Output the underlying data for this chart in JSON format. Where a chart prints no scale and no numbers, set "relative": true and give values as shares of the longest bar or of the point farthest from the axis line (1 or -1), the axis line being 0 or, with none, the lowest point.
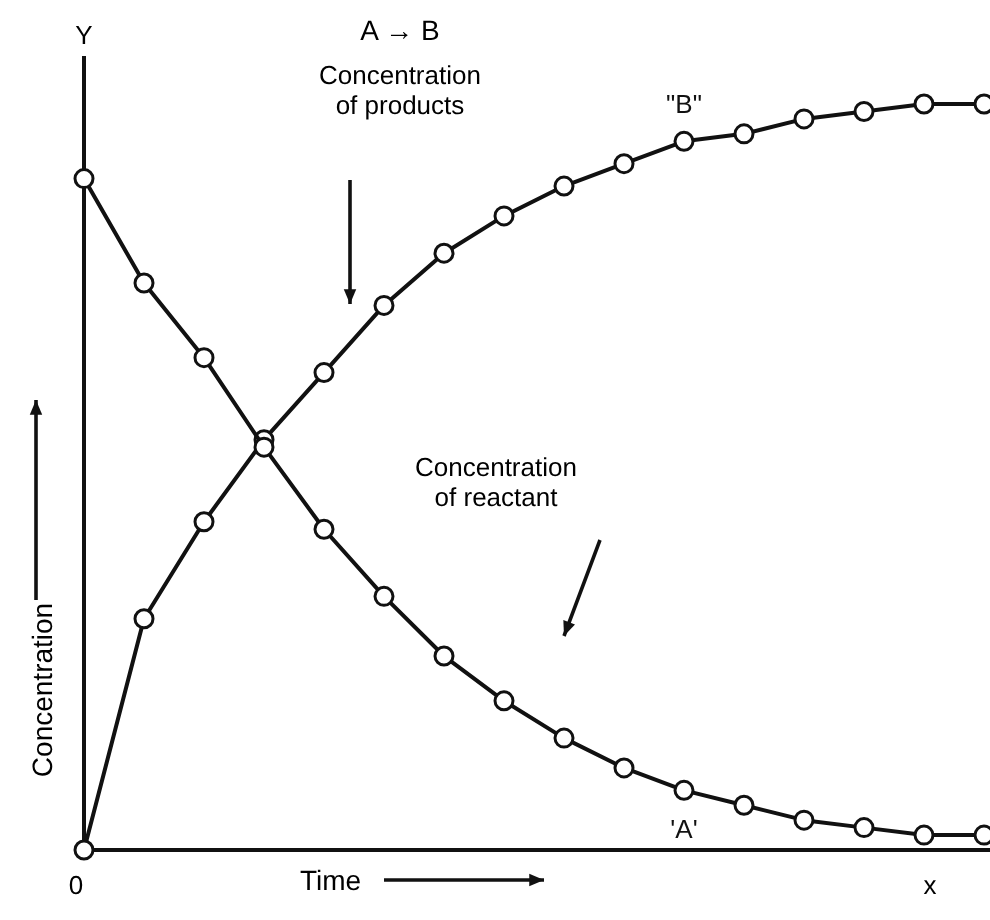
{
  "chart_data": {
    "type": "line",
    "title": "A → B",
    "xlabel": "Time",
    "ylabel": "Concentration",
    "relative": true,
    "marker": "circle",
    "line_style": "solid",
    "categories": [
      null,
      null,
      null,
      null,
      null,
      null,
      null,
      null,
      null,
      null,
      null,
      null,
      null,
      null,
      null,
      null
    ],
    "series": [
      {
        "name": "\"B\"",
        "color": "#111111",
        "values": [
          0,
          0.31,
          0.44,
          0.55,
          0.64,
          0.73,
          0.8,
          0.85,
          0.89,
          0.92,
          0.95,
          0.96,
          0.98,
          0.99,
          1,
          1
        ]
      },
      {
        "name": "'A'",
        "color": "#111111",
        "values": [
          0.9,
          0.76,
          0.66,
          0.54,
          0.43,
          0.34,
          0.26,
          0.2,
          0.15,
          0.11,
          0.08,
          0.06,
          0.04,
          0.03,
          0.02,
          0.02
        ]
      }
    ],
    "annotations": [
      "Concentration\nof products",
      "Concentration\nof reactant",
      "0",
      "Y",
      "x"
    ]
  }
}
